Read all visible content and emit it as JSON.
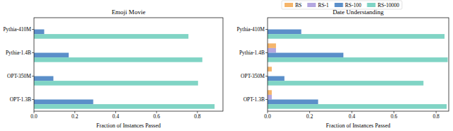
{
  "chart_data": [
    {
      "type": "bar",
      "orientation": "horizontal",
      "title": "Emoji Movie",
      "x_label": "Fraction of Instances Passed",
      "categories": [
        "Pythia-410M",
        "Pythia-1.4B",
        "OPT-350M",
        "OPT-1.3B"
      ],
      "series": [
        {
          "name": "BS",
          "color": "#f5b56b",
          "values": [
            0,
            0,
            0,
            0
          ]
        },
        {
          "name": "RS-1",
          "color": "#b4a7e0",
          "values": [
            0,
            0,
            0,
            0
          ]
        },
        {
          "name": "RS-100",
          "color": "#5b8fc9",
          "values": [
            0.05,
            0.17,
            0.095,
            0.29
          ]
        },
        {
          "name": "RS-10000",
          "color": "#80d4c5",
          "values": [
            0.756,
            0.824,
            0.803,
            0.884
          ]
        }
      ],
      "xlim": [
        0,
        0.925
      ],
      "xticks": [
        {
          "value": 0,
          "label": "0.0"
        },
        0.2,
        0.4,
        0.6,
        0.8
      ],
      "legend": "upper center"
    },
    {
      "type": "bar",
      "orientation": "horizontal",
      "title": "Date Understanding",
      "x_label": "Fraction of Instances Passed",
      "categories": [
        "Pythia-410M",
        "Pythia-1.4B",
        "OPT-350M",
        "OPT-1.3B"
      ],
      "series": [
        {
          "name": "BS",
          "color": "#f5b56b",
          "values": [
            0,
            0.04,
            0.02,
            0.02
          ]
        },
        {
          "name": "RS-1",
          "color": "#b4a7e0",
          "values": [
            0,
            0.04,
            0,
            0.02
          ]
        },
        {
          "name": "RS-100",
          "color": "#5b8fc9",
          "values": [
            0.16,
            0.36,
            0.08,
            0.24
          ]
        },
        {
          "name": "RS-10000",
          "color": "#80d4c5",
          "values": [
            0.84,
            0.855,
            0.74,
            0.85
          ]
        }
      ],
      "xlim": [
        0,
        0.86
      ],
      "xticks": [
        {
          "value": 0,
          "label": "0.0"
        },
        0.2,
        0.4,
        0.6,
        0.8
      ]
    }
  ]
}
